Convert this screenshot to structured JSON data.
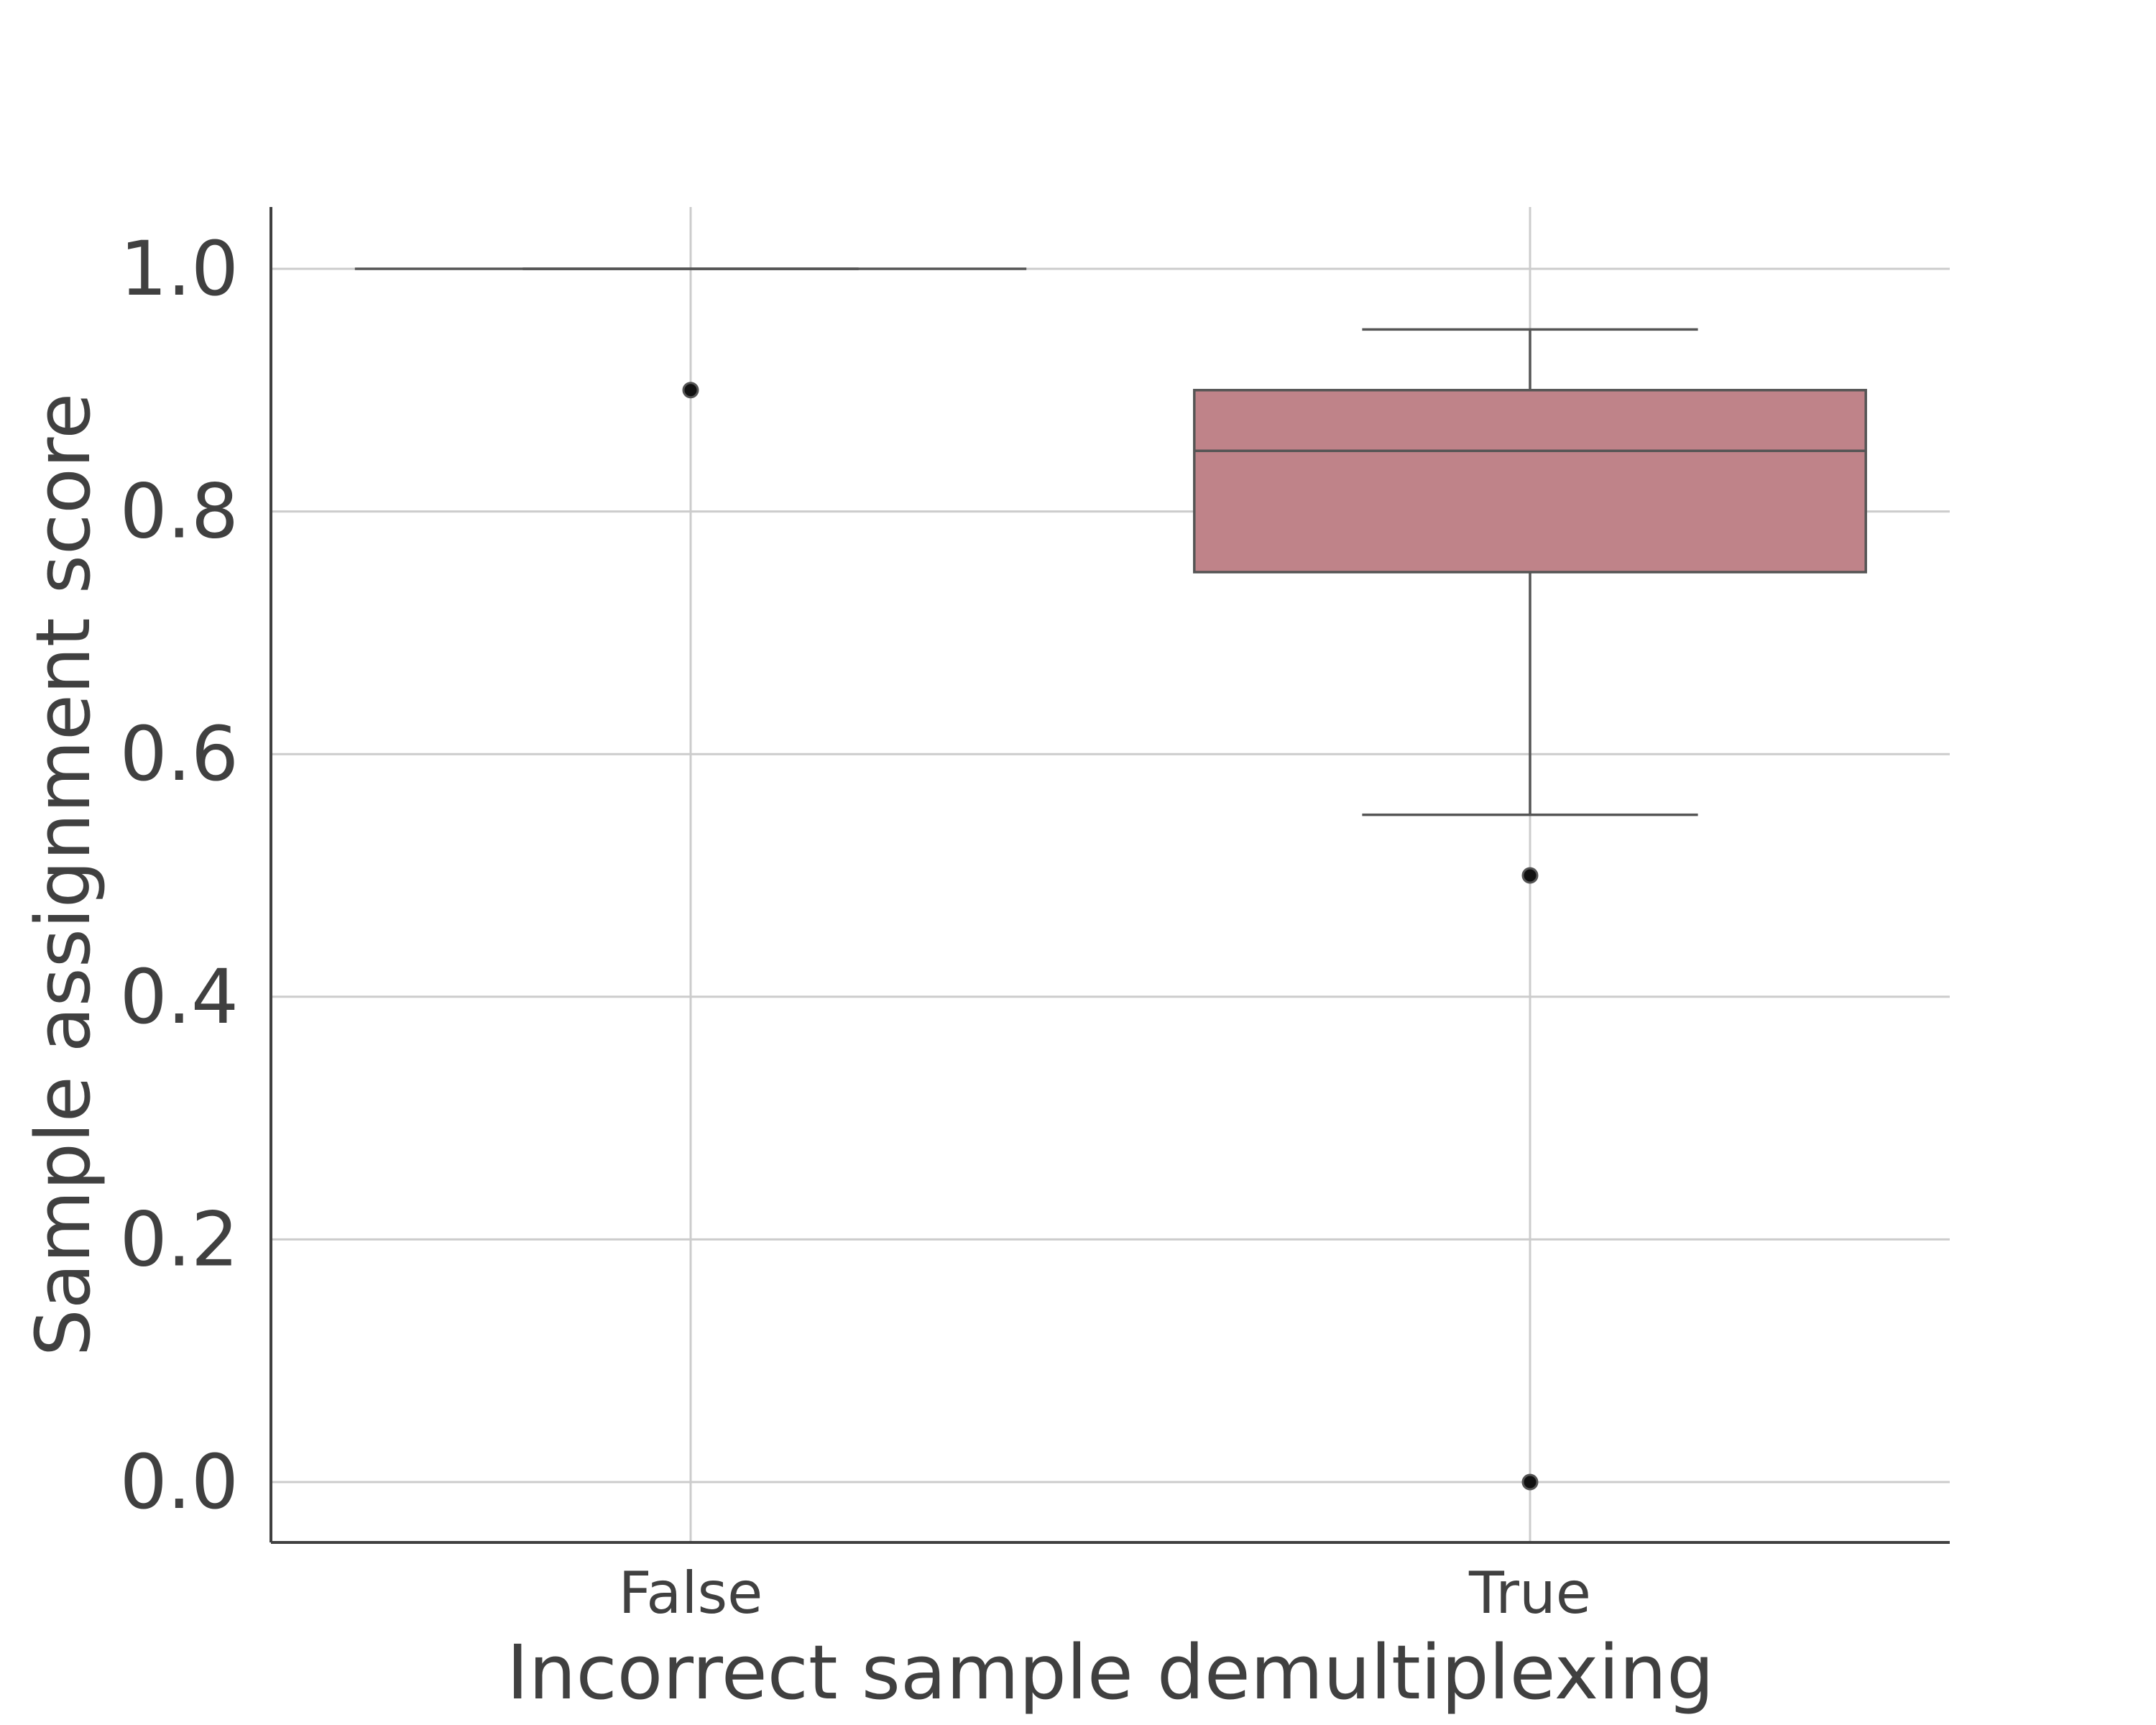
{
  "chart_data": {
    "type": "box",
    "title": "",
    "xlabel": "Incorrect sample demultiplexing",
    "ylabel": "Sample assignment score",
    "categories": [
      "False",
      "True"
    ],
    "ylim": [
      -0.05,
      1.05
    ],
    "yticks": [
      {
        "value": 0.0,
        "label": "0.0"
      },
      {
        "value": 0.2,
        "label": "0.2"
      },
      {
        "value": 0.4,
        "label": "0.4"
      },
      {
        "value": 0.6,
        "label": "0.6"
      },
      {
        "value": 0.8,
        "label": "0.8"
      },
      {
        "value": 1.0,
        "label": "1.0"
      }
    ],
    "grid": true,
    "boxes": [
      {
        "category": "False",
        "q1": 1.0,
        "median": 1.0,
        "q3": 1.0,
        "whisker_low": 1.0,
        "whisker_high": 1.0,
        "outliers": [
          0.9
        ]
      },
      {
        "category": "True",
        "q1": 0.75,
        "median": 0.85,
        "q3": 0.9,
        "whisker_low": 0.55,
        "whisker_high": 0.95,
        "outliers": [
          0.5,
          0.0
        ]
      }
    ],
    "colors": {
      "box_fill": "#bf8389",
      "box_edge": "#555555",
      "grid": "#cccccc",
      "axis": "#404040",
      "outlier": "#111111"
    }
  }
}
